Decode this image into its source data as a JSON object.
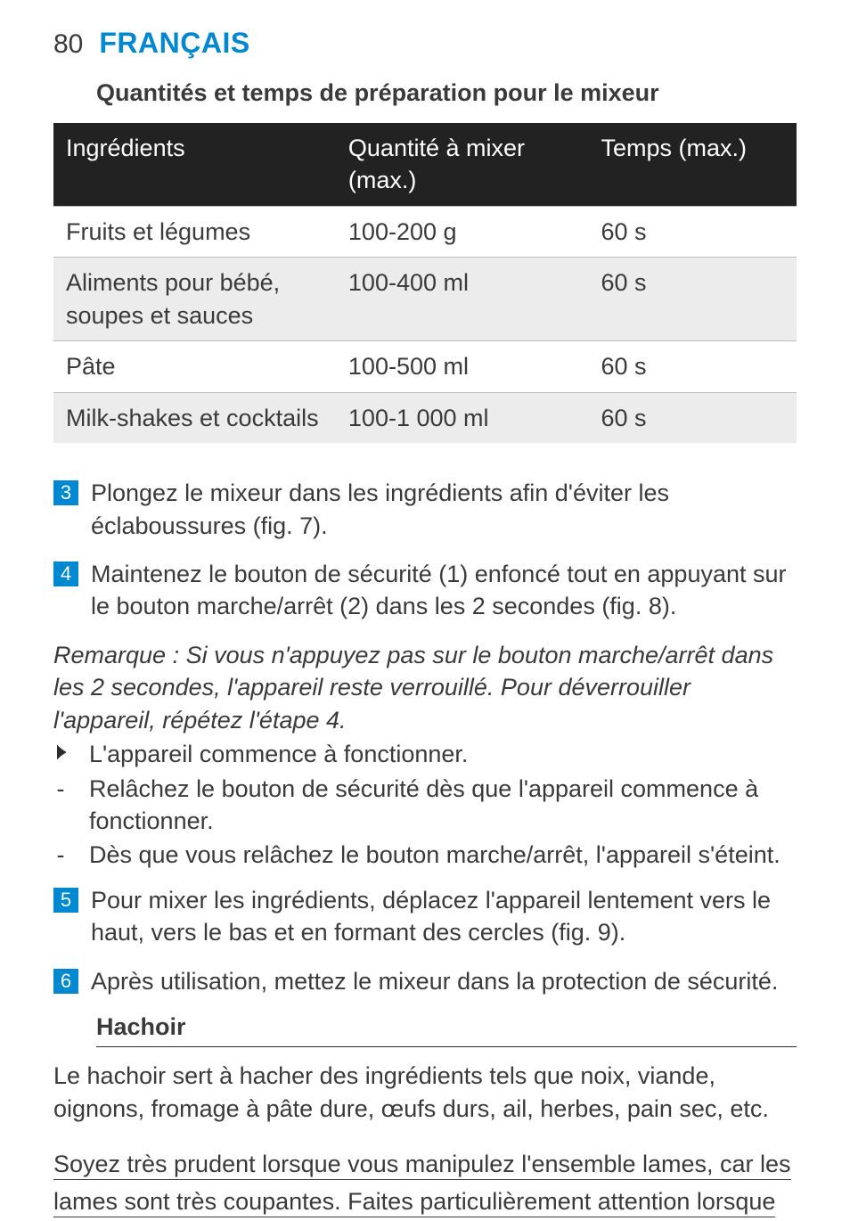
{
  "colors": {
    "brand": "#0089d0",
    "step_bg": "#0089d0",
    "step_fg": "#ffffff",
    "thead_bg": "#222222",
    "thead_fg": "#ffffff",
    "row_alt_bg": "#ececec",
    "text": "#3a3a3a",
    "rule": "#bdbdbd"
  },
  "header": {
    "page_number": "80",
    "language": "FRANÇAIS"
  },
  "section_title": "Quantités et temps de préparation pour le mixeur",
  "table": {
    "columns": [
      "Ingrédients",
      "Quantité à mixer (max.)",
      "Temps (max.)"
    ],
    "rows": [
      [
        "Fruits et légumes",
        "100-200 g",
        "60 s"
      ],
      [
        "Aliments pour bébé, soupes et sauces",
        "100-400 ml",
        "60 s"
      ],
      [
        "Pâte",
        "100-500 ml",
        "60 s"
      ],
      [
        "Milk-shakes et cocktails",
        "100-1 000 ml",
        "60 s"
      ]
    ],
    "alt_row_indices": [
      1,
      3
    ]
  },
  "steps_a": [
    {
      "n": "3",
      "text": "Plongez le mixeur dans les ingrédients afin d'éviter les éclaboussures (fig. 7)."
    },
    {
      "n": "4",
      "text": "Maintenez le bouton de sécurité (1) enfoncé tout en appuyant sur le bouton marche/arrêt (2) dans les 2 secondes (fig. 8)."
    }
  ],
  "note": "Remarque : Si vous n'appuyez pas sur le bouton marche/arrêt dans les 2 secondes, l'appareil reste verrouillé. Pour déverrouiller l'appareil, répétez l'étape 4.",
  "play_line": "L'appareil commence à fonctionner.",
  "dashes": [
    "Relâchez le bouton de sécurité dès que l'appareil commence à fonctionner.",
    "Dès que vous relâchez le bouton marche/arrêt, l'appareil s'éteint."
  ],
  "steps_b": [
    {
      "n": "5",
      "text": "Pour mixer les ingrédients, déplacez l'appareil lentement vers le haut, vers le bas et en formant des cercles (fig. 9)."
    },
    {
      "n": "6",
      "text": "Après utilisation, mettez le mixeur dans la protection de sécurité."
    }
  ],
  "hachoir": {
    "title": "Hachoir",
    "para": "Le hachoir sert à hacher des ingrédients tels que noix, viande, oignons, fromage à pâte dure, œufs durs, ail, herbes, pain sec, etc.",
    "warn1": "Soyez très prudent lorsque vous manipulez l'ensemble lames, car les",
    "warn2": "lames sont très coupantes. Faites particulièrement attention lorsque"
  }
}
